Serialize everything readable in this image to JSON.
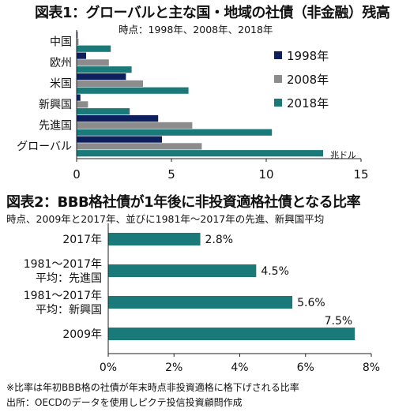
{
  "figure1": {
    "title": "図表1：グローバルと主な国・地域の社債（非金融）残高",
    "subtitle": "時点：1998年、2008年、2018年"
  },
  "figure2": {
    "title": "図表2：BBB格社債が1年後に非投資適格社債となる比率",
    "subtitle": "時点、2009年と2017年、並びに1981年～2017年の先進、新興国平均"
  },
  "footnotes": {
    "note": "※比率は年初BBB格の社債が年末時点非投資適格に格下げされる比率",
    "source": "出所：OECDのデータを使用しピクテ投信投資顧問作成"
  },
  "chart_data": [
    {
      "type": "bar",
      "orientation": "horizontal",
      "categories": [
        "中国",
        "欧州",
        "米国",
        "新興国",
        "先進国",
        "グローバル"
      ],
      "series": [
        {
          "name": "1998年",
          "color": "#0d1f5c",
          "values": [
            0.05,
            0.5,
            2.6,
            0.2,
            4.3,
            4.5
          ]
        },
        {
          "name": "2008年",
          "color": "#8c8c8c",
          "values": [
            0.1,
            1.7,
            3.5,
            0.6,
            6.1,
            6.6
          ]
        },
        {
          "name": "2018年",
          "color": "#1a7a7a",
          "values": [
            1.8,
            2.9,
            5.9,
            2.8,
            10.3,
            13.0
          ]
        }
      ],
      "xlim": [
        0,
        15
      ],
      "xticks": [
        "0",
        "5",
        "10",
        "15"
      ],
      "xlabel": "兆ドル",
      "legend_position": "right",
      "grid": false
    },
    {
      "type": "bar",
      "orientation": "horizontal",
      "categories": [
        [
          "2017年"
        ],
        [
          "1981～2017年",
          "平均：先進国"
        ],
        [
          "1981～2017年",
          "平均：新興国"
        ],
        [
          "2009年"
        ]
      ],
      "values": [
        2.8,
        4.5,
        5.6,
        7.5
      ],
      "labels": [
        "2.8%",
        "4.5%",
        "5.6%",
        "7.5%"
      ],
      "color": "#1a7a7a",
      "xlim": [
        0,
        8
      ],
      "xticks": [
        "0%",
        "2%",
        "4%",
        "6%",
        "8%"
      ],
      "grid": false
    }
  ]
}
